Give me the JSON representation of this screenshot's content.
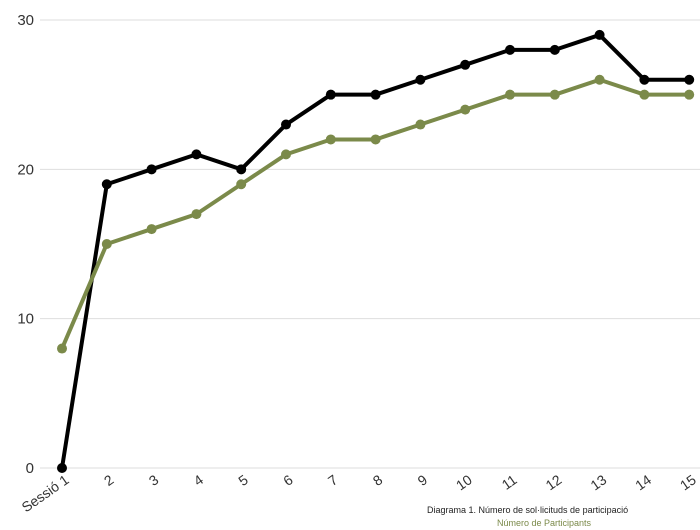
{
  "chart_data": {
    "type": "line",
    "categories": [
      "Sessió 1",
      "2",
      "3",
      "4",
      "5",
      "6",
      "7",
      "8",
      "9",
      "10",
      "11",
      "12",
      "13",
      "14",
      "15"
    ],
    "series": [
      {
        "name": "",
        "color": "#000000",
        "values": [
          0,
          19,
          20,
          21,
          20,
          23,
          25,
          25,
          26,
          27,
          28,
          28,
          29,
          26,
          26
        ]
      },
      {
        "name": "Número de Participants",
        "color": "#7b8a4a",
        "values": [
          8,
          15,
          16,
          17,
          19,
          21,
          22,
          22,
          23,
          24,
          25,
          25,
          26,
          25,
          25
        ]
      }
    ],
    "y_ticks": [
      "0",
      "10",
      "20",
      "30"
    ],
    "ylim": [
      0,
      30
    ],
    "grid": true,
    "caption": "Diagrama 1. Número de sol·licituds de participació",
    "legend_label": "Número de Participants"
  }
}
